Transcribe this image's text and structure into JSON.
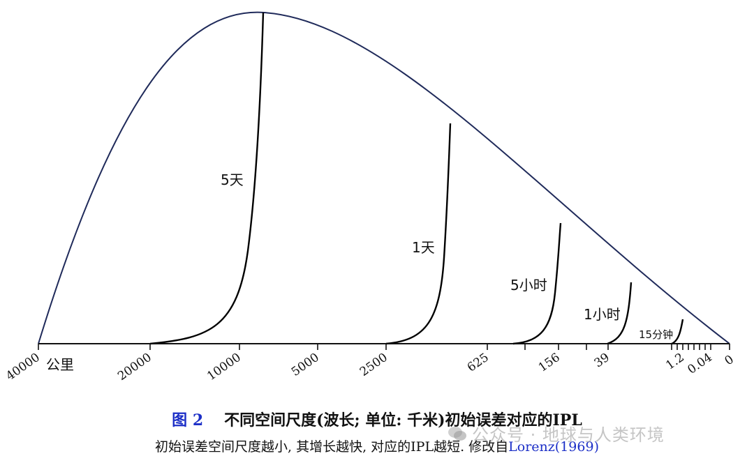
{
  "chart_data": {
    "type": "line",
    "x_axis": {
      "ticks": [
        "40000",
        "20000",
        "10000",
        "5000",
        "2500",
        "625",
        "156",
        "39",
        "1.2",
        "0.04",
        "0"
      ],
      "unit_label": "公里"
    },
    "series": [
      {
        "name": "5天"
      },
      {
        "name": "1天"
      },
      {
        "name": "5小时"
      },
      {
        "name": "1小时"
      },
      {
        "name": "15分钟"
      }
    ]
  },
  "caption": {
    "figure_number": "图 2",
    "title": "不同空间尺度(波长; 单位: 千米)初始误差对应的IPL",
    "subtitle_text": "初始误差空间尺度越小, 其增长越快, 对应的IPL越短. 修改自",
    "subtitle_ref": "Lorenz(1969)"
  },
  "watermark": {
    "text": "公众号 · 地球与人类环境"
  },
  "colors": {
    "envelope": "#1f2a5a",
    "curve": "#000000",
    "accent": "#1c2fc7"
  }
}
